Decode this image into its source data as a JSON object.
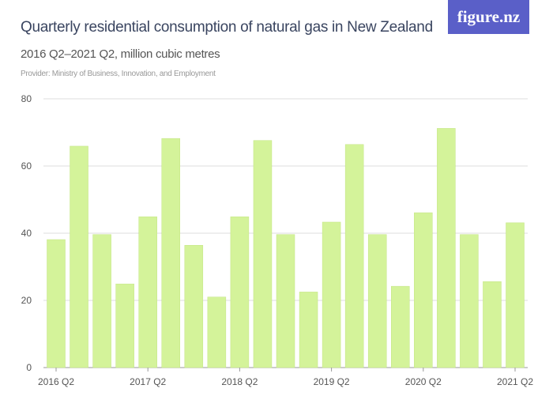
{
  "logo": "figure.nz",
  "chart_data": {
    "type": "bar",
    "title": "Quarterly residential consumption of natural gas in New Zealand",
    "subtitle": "2016 Q2–2021 Q2, million cubic metres",
    "provider": "Provider: Ministry of Business, Innovation, and Employment",
    "categories": [
      "2016 Q2",
      "2016 Q3",
      "2016 Q4",
      "2017 Q1",
      "2017 Q2",
      "2017 Q3",
      "2017 Q4",
      "2018 Q1",
      "2018 Q2",
      "2018 Q3",
      "2018 Q4",
      "2019 Q1",
      "2019 Q2",
      "2019 Q3",
      "2019 Q4",
      "2020 Q1",
      "2020 Q2",
      "2020 Q3",
      "2020 Q4",
      "2021 Q1",
      "2021 Q2"
    ],
    "values": [
      38.1,
      65.9,
      39.6,
      24.9,
      44.9,
      68.2,
      36.4,
      21.0,
      44.9,
      67.6,
      39.6,
      22.5,
      43.3,
      66.4,
      39.6,
      24.2,
      46.1,
      71.2,
      39.6,
      25.6,
      43.1
    ],
    "xtick_labels": [
      "2016 Q2",
      "2017 Q2",
      "2018 Q2",
      "2019 Q2",
      "2020 Q2",
      "2021 Q2"
    ],
    "yticks": [
      0,
      20,
      40,
      60,
      80
    ],
    "ylim": [
      0,
      80
    ],
    "grid": true,
    "bar_color": "#d4f39a",
    "bar_edge_color": "#c3e483"
  }
}
